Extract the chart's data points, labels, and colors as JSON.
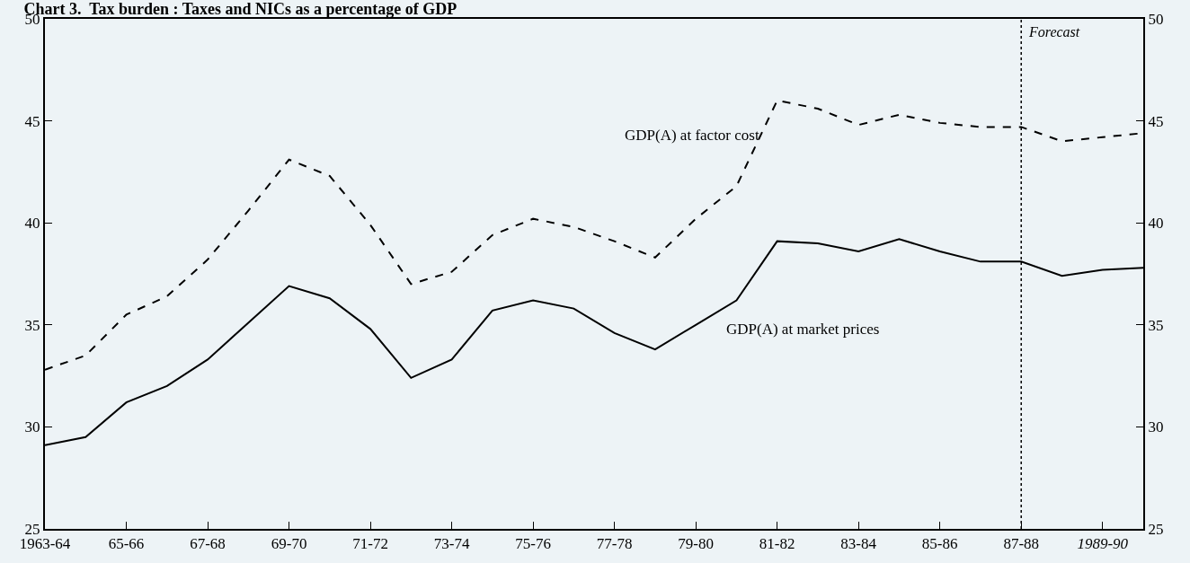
{
  "chart_data": {
    "type": "line",
    "title": "Chart 3.  Tax burden : Taxes and NICs as a percentage of GDP",
    "categories": [
      "1963-64",
      null,
      "65-66",
      null,
      "67-68",
      null,
      "69-70",
      null,
      "71-72",
      null,
      "73-74",
      null,
      "75-76",
      null,
      "77-78",
      null,
      "79-80",
      null,
      "81-82",
      null,
      "83-84",
      null,
      "85-86",
      null,
      "87-88",
      null,
      "1989-90",
      null
    ],
    "series": [
      {
        "name": "GDP(A) at factor cost",
        "color": "#000000",
        "line_style": "dashed",
        "values": [
          32.8,
          33.5,
          35.5,
          36.4,
          38.2,
          40.6,
          43.1,
          42.3,
          39.9,
          37.0,
          37.6,
          39.4,
          40.2,
          39.8,
          39.1,
          38.3,
          40.2,
          41.8,
          46.0,
          45.6,
          44.8,
          45.3,
          44.9,
          44.7,
          44.7,
          44.0,
          44.2,
          44.4
        ]
      },
      {
        "name": "GDP(A) at market prices",
        "color": "#000000",
        "line_style": "solid",
        "values": [
          29.1,
          29.5,
          31.2,
          32.0,
          33.3,
          35.1,
          36.9,
          36.3,
          34.8,
          32.4,
          33.3,
          35.7,
          36.2,
          35.8,
          34.6,
          33.8,
          35.0,
          36.2,
          39.1,
          39.0,
          38.6,
          39.2,
          38.6,
          38.1,
          38.1,
          37.4,
          37.7,
          37.8
        ]
      }
    ],
    "ylim": [
      25,
      50
    ],
    "yticks": [
      25,
      30,
      35,
      40,
      45,
      50
    ],
    "y2lim": [
      25,
      50
    ],
    "y2ticks": [
      25,
      30,
      35,
      40,
      45,
      50
    ],
    "ref_lines": [
      {
        "axis": "x",
        "value": "87-88",
        "label": "Forecast",
        "color": "#000000",
        "line_style": "dotted"
      }
    ],
    "grid": false,
    "legend": false,
    "marker": "none"
  }
}
